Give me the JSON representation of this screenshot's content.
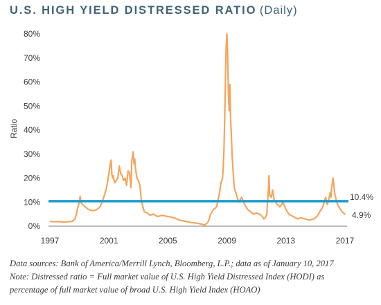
{
  "header": {
    "title": "U.S. HIGH YIELD DISTRESSED RATIO",
    "subtitle": "(Daily)"
  },
  "chart_data": {
    "type": "line",
    "title": "U.S. HIGH YIELD DISTRESSED RATIO (Daily)",
    "ylabel": "Ratio",
    "xlabel": "",
    "xlim": [
      1997.0,
      2017.05
    ],
    "ylim": [
      0,
      80
    ],
    "x_ticks": [
      "1997",
      "2001",
      "2005",
      "2009",
      "2013",
      "2017"
    ],
    "y_ticks": [
      "0%",
      "10%",
      "20%",
      "30%",
      "40%",
      "50%",
      "60%",
      "70%",
      "80%"
    ],
    "grid": false,
    "legend": "none",
    "series": [
      {
        "color": "#f5a55c",
        "x": [
          1997.0,
          1997.3,
          1997.6,
          1997.9,
          1998.2,
          1998.5,
          1998.7,
          1998.8,
          1998.9,
          1999.0,
          1999.05,
          1999.1,
          1999.2,
          1999.4,
          1999.6,
          1999.8,
          2000.0,
          2000.2,
          2000.4,
          2000.6,
          2000.8,
          2000.9,
          2001.0,
          2001.1,
          2001.15,
          2001.2,
          2001.25,
          2001.3,
          2001.35,
          2001.4,
          2001.5,
          2001.6,
          2001.7,
          2001.8,
          2001.9,
          2002.0,
          2002.1,
          2002.2,
          2002.3,
          2002.4,
          2002.5,
          2002.55,
          2002.6,
          2002.65,
          2002.7,
          2002.75,
          2002.8,
          2002.9,
          2003.0,
          2003.1,
          2003.2,
          2003.3,
          2003.4,
          2003.6,
          2003.8,
          2004.0,
          2004.3,
          2004.6,
          2005.0,
          2005.4,
          2005.8,
          2006.2,
          2006.6,
          2007.0,
          2007.3,
          2007.5,
          2007.7,
          2007.8,
          2007.9,
          2008.0,
          2008.1,
          2008.3,
          2008.5,
          2008.6,
          2008.7,
          2008.75,
          2008.8,
          2008.85,
          2008.9,
          2008.95,
          2009.0,
          2009.05,
          2009.1,
          2009.15,
          2009.2,
          2009.25,
          2009.3,
          2009.35,
          2009.4,
          2009.45,
          2009.5,
          2009.6,
          2009.7,
          2009.8,
          2009.9,
          2010.0,
          2010.2,
          2010.4,
          2010.6,
          2010.8,
          2011.0,
          2011.2,
          2011.4,
          2011.5,
          2011.6,
          2011.7,
          2011.8,
          2011.85,
          2011.9,
          2012.0,
          2012.1,
          2012.2,
          2012.4,
          2012.6,
          2012.8,
          2013.0,
          2013.2,
          2013.5,
          2013.8,
          2014.0,
          2014.3,
          2014.6,
          2014.9,
          2015.1,
          2015.3,
          2015.5,
          2015.7,
          2015.8,
          2015.9,
          2016.0,
          2016.05,
          2016.1,
          2016.15,
          2016.2,
          2016.3,
          2016.4,
          2016.5,
          2016.6,
          2016.7,
          2016.8,
          2016.9,
          2017.0,
          2017.03
        ],
        "values": [
          2,
          1.8,
          1.9,
          1.7,
          1.8,
          2,
          3,
          5,
          8,
          10,
          12.5,
          10,
          9,
          8,
          7,
          6.5,
          6.5,
          7,
          8,
          11,
          15,
          18,
          22,
          26,
          27.5,
          22,
          20,
          21,
          19,
          18,
          19,
          20,
          25,
          22,
          21,
          19,
          20,
          17,
          23,
          22,
          16,
          27,
          29,
          31,
          26,
          28,
          24,
          20,
          19,
          17,
          11,
          8,
          6,
          5.5,
          4.5,
          5,
          4,
          4.5,
          4,
          3.5,
          2.5,
          2,
          1.5,
          1.2,
          0.8,
          0.5,
          1.5,
          3,
          5,
          6,
          7,
          8,
          14,
          18,
          20,
          24,
          32,
          45,
          60,
          75,
          80,
          72,
          55,
          48,
          59,
          45,
          38,
          30,
          25,
          20,
          16,
          14,
          12,
          10,
          11,
          12,
          9,
          7,
          6,
          5,
          5.5,
          5,
          4,
          3,
          3.5,
          5,
          14,
          21,
          13,
          12,
          15,
          11,
          9,
          8,
          10,
          7,
          5,
          4,
          3,
          3.5,
          3,
          2.5,
          3,
          4,
          6,
          8,
          12,
          9,
          11,
          14,
          12,
          16,
          18,
          20,
          14,
          11,
          9,
          8,
          7,
          6,
          5.5,
          5,
          4.9
        ]
      }
    ],
    "reference_line": {
      "value": 10.4,
      "label": "10.4%",
      "color": "#1b9ccf"
    },
    "end_label": "4.9%"
  },
  "notes": {
    "line1": "Data sources: Bank of America/Merrill Lynch, Bloomberg, L.P.; data as of January 10, 2017",
    "line2": "Note: Distressed ratio = Full market value of U.S. High Yield Distressed Index (HODI) as",
    "line3": "percentage of full market value of broad U.S. High Yield Index (HOAO)"
  }
}
